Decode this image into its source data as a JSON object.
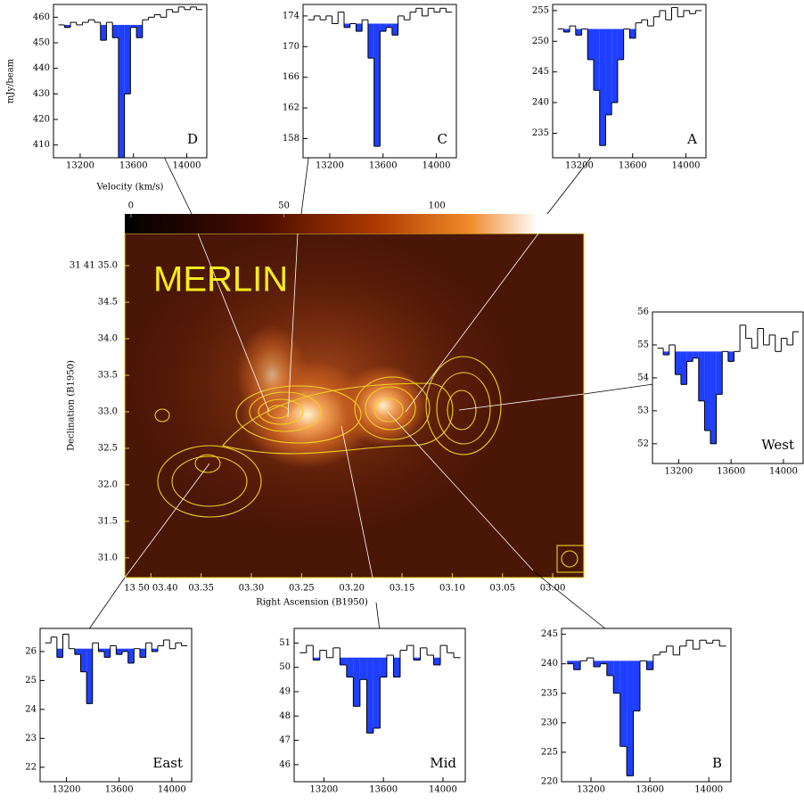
{
  "chart_data": [
    {
      "type": "image",
      "title": "MERLIN",
      "xlabel": "Right Ascension (B1950)",
      "ylabel": "Declination (B1950)",
      "xlim": [
        3.426,
        2.969
      ],
      "ylim": [
        30.73,
        35.44
      ],
      "xticks": [
        {
          "value": 3.4,
          "label": "13 50 03.40"
        },
        {
          "value": 3.35,
          "label": "03.35"
        },
        {
          "value": 3.3,
          "label": "03.30"
        },
        {
          "value": 3.25,
          "label": "03.25"
        },
        {
          "value": 3.2,
          "label": "03.20"
        },
        {
          "value": 3.15,
          "label": "03.15"
        },
        {
          "value": 3.1,
          "label": "03.10"
        },
        {
          "value": 3.05,
          "label": "03.05"
        },
        {
          "value": 3.0,
          "label": "03.00"
        }
      ],
      "yticks": [
        {
          "value": 35,
          "label": "31 41 35.0"
        },
        34.5,
        {
          "value": 34,
          "label": "34.0"
        },
        33.5,
        {
          "value": 33,
          "label": "33.0"
        },
        32.5,
        {
          "value": 32,
          "label": "32.0"
        },
        31.5,
        {
          "value": 31,
          "label": "31.0"
        }
      ],
      "clim": [
        -2,
        148
      ],
      "cticks": [
        0,
        50,
        100
      ],
      "contour_color": "#f0d21e"
    },
    {
      "type": "step",
      "panel_label": "D",
      "ylabel": "mJy/beam",
      "xlabel": "Velocity (km/s)",
      "color": "#000000",
      "fill_color": "#1f3fff",
      "fill_to": 457,
      "xlim": [
        13000,
        14150
      ],
      "ylim": [
        405,
        465
      ],
      "xticks": [
        13200,
        13600,
        14000
      ],
      "yticks": [
        410,
        420,
        430,
        440,
        450,
        460
      ],
      "x": [
        13060,
        13105,
        13150,
        13195,
        13240,
        13285,
        13330,
        13375,
        13420,
        13465,
        13510,
        13555,
        13600,
        13645,
        13690,
        13735,
        13780,
        13825,
        13870,
        13915,
        13960,
        14005,
        14050,
        14095
      ],
      "values": [
        457,
        456,
        458,
        457,
        458,
        459,
        458,
        451,
        458,
        452,
        405,
        430,
        456,
        452,
        459,
        460,
        461,
        460,
        463,
        462,
        464,
        463,
        464,
        463
      ]
    },
    {
      "type": "step",
      "panel_label": "C",
      "color": "#000000",
      "fill_color": "#1f3fff",
      "fill_to": 173,
      "xlim": [
        13000,
        14150
      ],
      "ylim": [
        155.5,
        175.5
      ],
      "xticks": [
        13200,
        13600,
        14000
      ],
      "yticks": [
        158,
        162,
        166,
        170,
        174
      ],
      "x": [
        13060,
        13105,
        13150,
        13195,
        13240,
        13285,
        13330,
        13375,
        13420,
        13465,
        13510,
        13555,
        13600,
        13645,
        13690,
        13735,
        13780,
        13825,
        13870,
        13915,
        13960,
        14005,
        14050,
        14095
      ],
      "values": [
        173.5,
        174,
        173.5,
        174,
        173,
        174.5,
        172.5,
        173,
        172,
        173.5,
        168.5,
        157,
        172,
        172.5,
        171.5,
        174,
        173.5,
        174.5,
        175,
        174,
        175,
        174.5,
        175,
        174.5
      ]
    },
    {
      "type": "step",
      "panel_label": "A",
      "color": "#000000",
      "fill_color": "#1f3fff",
      "fill_to": 252,
      "xlim": [
        13000,
        14150
      ],
      "ylim": [
        231,
        256
      ],
      "xticks": [
        13200,
        13600,
        14000
      ],
      "yticks": [
        235,
        240,
        245,
        250,
        255
      ],
      "x": [
        13060,
        13105,
        13150,
        13195,
        13240,
        13285,
        13330,
        13375,
        13420,
        13465,
        13510,
        13555,
        13600,
        13645,
        13690,
        13735,
        13780,
        13825,
        13870,
        13915,
        13960,
        14005,
        14050,
        14095
      ],
      "values": [
        252,
        251.5,
        252.5,
        251,
        252,
        247,
        242,
        233,
        238,
        240,
        247,
        252,
        250.5,
        253,
        253.5,
        252.5,
        254,
        255,
        253.5,
        255.5,
        254,
        255,
        254.5,
        255
      ]
    },
    {
      "type": "step",
      "panel_label": "West",
      "color": "#000000",
      "fill_color": "#1f3fff",
      "fill_to": 54.8,
      "xlim": [
        13000,
        14150
      ],
      "ylim": [
        51.4,
        56
      ],
      "xticks": [
        13200,
        13600,
        14000
      ],
      "yticks": [
        52,
        53,
        54,
        55,
        56
      ],
      "x": [
        13060,
        13105,
        13150,
        13195,
        13240,
        13285,
        13330,
        13375,
        13420,
        13465,
        13510,
        13555,
        13600,
        13645,
        13690,
        13735,
        13780,
        13825,
        13870,
        13915,
        13960,
        14005,
        14050,
        14095
      ],
      "values": [
        54.9,
        54.7,
        55,
        54.1,
        53.8,
        54.5,
        54.6,
        53.3,
        52.4,
        52,
        53.5,
        54.8,
        54.5,
        54.8,
        55.6,
        55.2,
        54.9,
        55.5,
        55,
        55.3,
        54.8,
        55.2,
        55,
        55.4
      ]
    },
    {
      "type": "step",
      "panel_label": "East",
      "color": "#000000",
      "fill_color": "#1f3fff",
      "fill_to": 26.1,
      "xlim": [
        13000,
        14150
      ],
      "ylim": [
        21.5,
        26.8
      ],
      "xticks": [
        13200,
        13600,
        14000
      ],
      "yticks": [
        22,
        23,
        24,
        25,
        26
      ],
      "x": [
        13060,
        13105,
        13150,
        13195,
        13240,
        13285,
        13330,
        13375,
        13420,
        13465,
        13510,
        13555,
        13600,
        13645,
        13690,
        13735,
        13780,
        13825,
        13870,
        13915,
        13960,
        14005,
        14050,
        14095
      ],
      "values": [
        26.3,
        26.5,
        25.8,
        26.6,
        26.1,
        25.9,
        25.3,
        24.2,
        26.3,
        26,
        25.8,
        26.2,
        25.9,
        26,
        25.6,
        26.1,
        25.8,
        26.3,
        26,
        26.2,
        26.4,
        26.1,
        26.3,
        26.2
      ]
    },
    {
      "type": "step",
      "panel_label": "Mid",
      "color": "#000000",
      "fill_color": "#1f3fff",
      "fill_to": 50.4,
      "xlim": [
        13000,
        14150
      ],
      "ylim": [
        45.3,
        51.6
      ],
      "xticks": [
        13200,
        13600,
        14000
      ],
      "yticks": [
        46,
        47,
        48,
        49,
        50,
        51
      ],
      "x": [
        13060,
        13105,
        13150,
        13195,
        13240,
        13285,
        13330,
        13375,
        13420,
        13465,
        13510,
        13555,
        13600,
        13645,
        13690,
        13735,
        13780,
        13825,
        13870,
        13915,
        13960,
        14005,
        14050,
        14095
      ],
      "values": [
        50.6,
        50.9,
        50.3,
        50.7,
        50.4,
        50.8,
        50.1,
        49.6,
        48.4,
        49.5,
        47.3,
        47.5,
        49.6,
        50.5,
        49.6,
        50.7,
        50.9,
        50.3,
        50.8,
        50.5,
        50.1,
        50.9,
        50.6,
        50.4
      ]
    },
    {
      "type": "step",
      "panel_label": "B",
      "color": "#000000",
      "fill_color": "#1f3fff",
      "fill_to": 240.5,
      "xlim": [
        13000,
        14150
      ],
      "ylim": [
        220,
        246
      ],
      "xticks": [
        13200,
        13600,
        14000
      ],
      "yticks": [
        220,
        225,
        230,
        235,
        240,
        245
      ],
      "x": [
        13060,
        13105,
        13150,
        13195,
        13240,
        13285,
        13330,
        13375,
        13420,
        13465,
        13510,
        13555,
        13600,
        13645,
        13690,
        13735,
        13780,
        13825,
        13870,
        13915,
        13960,
        14005,
        14050,
        14095
      ],
      "values": [
        240,
        239,
        240.5,
        241,
        239.5,
        240,
        238,
        235,
        226,
        221,
        232,
        240.5,
        239,
        241.5,
        242,
        243,
        241.5,
        243,
        244,
        242.5,
        244,
        243.5,
        244,
        243
      ]
    }
  ]
}
